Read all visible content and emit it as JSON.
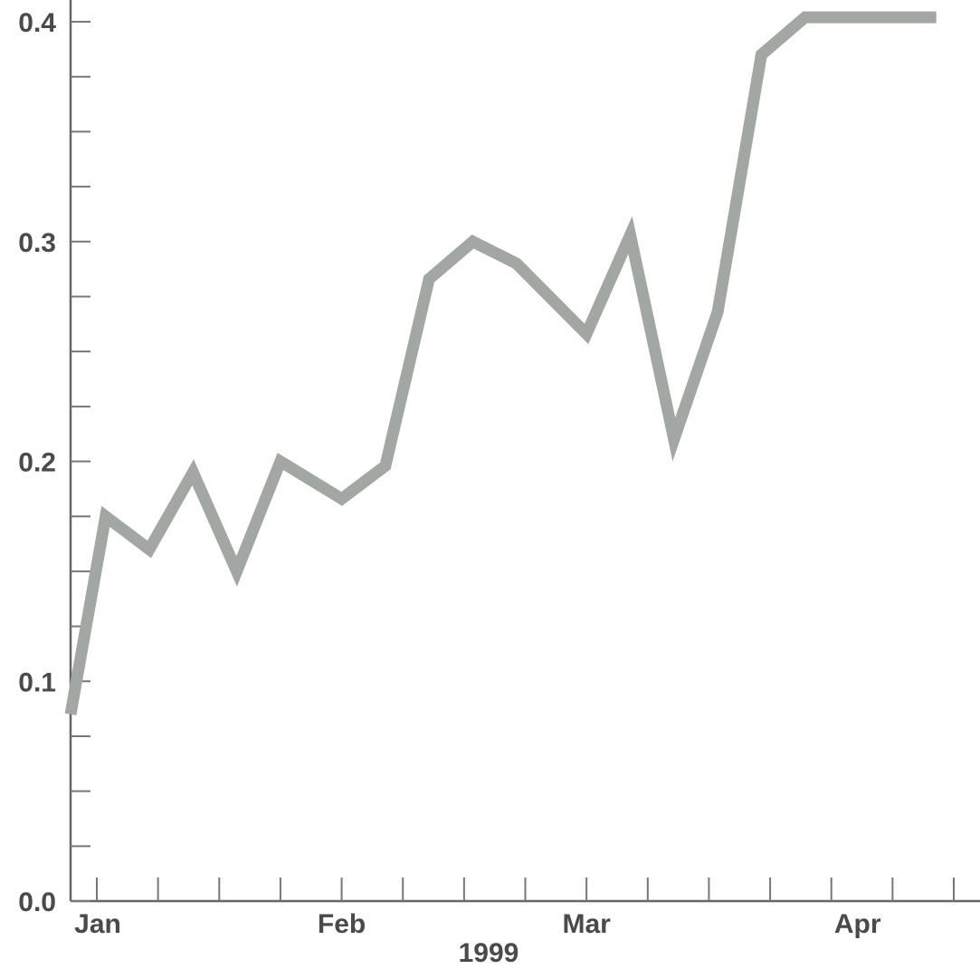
{
  "chart_data": {
    "type": "line",
    "title": "",
    "xlabel": "1999",
    "ylabel": "",
    "ylim": [
      0.0,
      0.4
    ],
    "yticks": [
      "0.0",
      "0.1",
      "0.2",
      "0.3",
      "0.4"
    ],
    "ytick_values": [
      0.0,
      0.1,
      0.2,
      0.3,
      0.4
    ],
    "y_minor_step": 0.025,
    "xtick_labels": [
      {
        "label": "Jan",
        "x": "1999-01-01"
      },
      {
        "label": "Feb",
        "x": "1999-02-01"
      },
      {
        "label": "Mar",
        "x": "1999-03-01"
      },
      {
        "label": "Apr",
        "x": "1999-04-01"
      }
    ],
    "xlim": [
      "1999-01-01",
      "1999-04-15"
    ],
    "x_minor_step_days": 7,
    "grid": false,
    "legend": "none",
    "color": "#a3a7a3",
    "series": [
      {
        "x": [
          "1999-01-01",
          "1999-01-05",
          "1999-01-10",
          "1999-01-15",
          "1999-01-20",
          "1999-01-25",
          "1999-02-01",
          "1999-02-06",
          "1999-02-11",
          "1999-02-16",
          "1999-02-21",
          "1999-03-01",
          "1999-03-06",
          "1999-03-11",
          "1999-03-16",
          "1999-03-21",
          "1999-03-26",
          "1999-03-31",
          "1999-04-04",
          "1999-04-10"
        ],
        "values": [
          0.085,
          0.175,
          0.16,
          0.195,
          0.15,
          0.2,
          0.183,
          0.198,
          0.283,
          0.3,
          0.29,
          0.258,
          0.303,
          0.21,
          0.268,
          0.385,
          0.402,
          0.402,
          0.402,
          0.402
        ]
      }
    ]
  }
}
